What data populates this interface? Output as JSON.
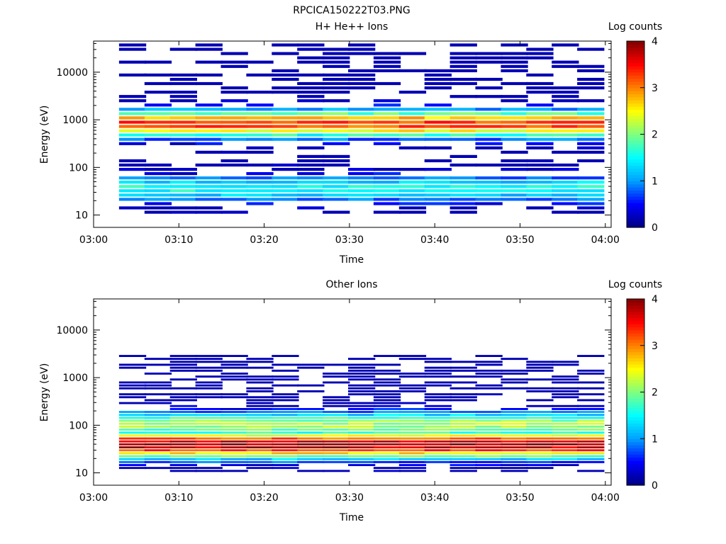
{
  "figure_title": "RPCICA150222T03.PNG",
  "colors": {
    "colormap": [
      "#000080",
      "#0000ff",
      "#00a0ff",
      "#00ffff",
      "#80ff80",
      "#ffff00",
      "#ff8000",
      "#ff0000",
      "#800000"
    ],
    "axis": "#000000",
    "background": "#ffffff"
  },
  "chart_data": [
    {
      "type": "heatmap",
      "title": "H+ He++ Ions",
      "xlabel": "Time",
      "ylabel": "Energy (eV)",
      "x_ticks": [
        "03:00",
        "03:10",
        "03:20",
        "03:30",
        "03:40",
        "03:50",
        "04:00"
      ],
      "y_ticks": [
        "10",
        "100",
        "1000",
        "10000"
      ],
      "y_scale": "log",
      "colorbar": {
        "label": "Log counts",
        "ticks": [
          "0",
          "1",
          "2",
          "3",
          "4"
        ],
        "range": [
          0,
          4
        ]
      },
      "time_bins": [
        "03:03",
        "03:06",
        "03:09",
        "03:12",
        "03:15",
        "03:18",
        "03:21",
        "03:24",
        "03:27",
        "03:30",
        "03:33",
        "03:36",
        "03:39",
        "03:42",
        "03:45",
        "03:48",
        "03:51",
        "03:54",
        "03:57"
      ],
      "profile": {
        "peaks": [
          {
            "energy_eV": 800,
            "log_counts": 3.3
          },
          {
            "energy_eV": 35,
            "log_counts": 1.6
          }
        ],
        "sparse_range_eV": [
          10,
          40000
        ],
        "fill_probability": 0.45
      }
    },
    {
      "type": "heatmap",
      "title": "Other Ions",
      "xlabel": "Time",
      "ylabel": "Energy (eV)",
      "x_ticks": [
        "03:00",
        "03:10",
        "03:20",
        "03:30",
        "03:40",
        "03:50",
        "04:00"
      ],
      "y_ticks": [
        "10",
        "100",
        "1000",
        "10000"
      ],
      "y_scale": "log",
      "colorbar": {
        "label": "Log counts",
        "ticks": [
          "0",
          "1",
          "2",
          "3",
          "4"
        ],
        "range": [
          0,
          4
        ]
      },
      "time_bins": [
        "03:03",
        "03:06",
        "03:09",
        "03:12",
        "03:15",
        "03:18",
        "03:21",
        "03:24",
        "03:27",
        "03:30",
        "03:33",
        "03:36",
        "03:39",
        "03:42",
        "03:45",
        "03:48",
        "03:51",
        "03:54",
        "03:57"
      ],
      "profile": {
        "peaks": [
          {
            "energy_eV": 38,
            "log_counts": 3.9
          },
          {
            "energy_eV": 100,
            "log_counts": 2.2
          }
        ],
        "sparse_range_eV": [
          10,
          3000
        ],
        "fill_probability": 0.55
      }
    }
  ]
}
